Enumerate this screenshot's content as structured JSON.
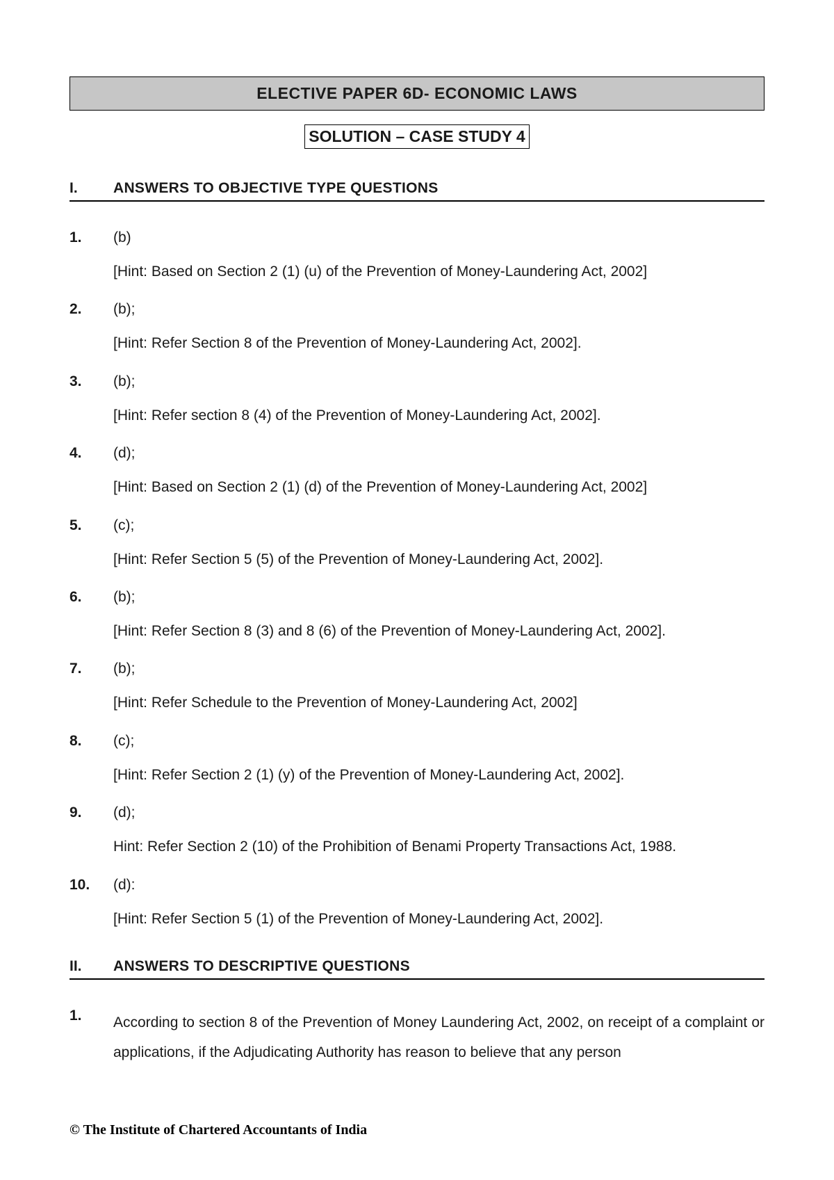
{
  "header": {
    "title": "ELECTIVE PAPER 6D- ECONOMIC LAWS",
    "subtitle": "SOLUTION – CASE STUDY 4"
  },
  "section1": {
    "num": "I.",
    "title": "ANSWERS TO OBJECTIVE TYPE QUESTIONS"
  },
  "questions": [
    {
      "num": "1.",
      "ans": "(b)",
      "hint": "[Hint: Based on Section 2 (1) (u) of the Prevention of Money-Laundering Act, 2002]"
    },
    {
      "num": "2.",
      "ans": "(b);",
      "hint": "[Hint: Refer Section 8 of the Prevention of Money-Laundering Act, 2002]."
    },
    {
      "num": "3.",
      "ans": "(b);",
      "hint": "[Hint: Refer section 8 (4) of the Prevention of Money-Laundering Act, 2002]."
    },
    {
      "num": "4.",
      "ans": "(d);",
      "hint": "[Hint: Based on Section 2 (1) (d) of the Prevention of Money-Laundering Act, 2002]"
    },
    {
      "num": "5.",
      "ans": "(c);",
      "hint": "[Hint: Refer Section 5 (5) of the Prevention of Money-Laundering Act, 2002]."
    },
    {
      "num": "6.",
      "ans": "(b);",
      "hint": "[Hint: Refer Section 8 (3) and 8 (6) of the Prevention of Money-Laundering Act, 2002]."
    },
    {
      "num": "7.",
      "ans": "(b);",
      "hint": "[Hint: Refer Schedule to the Prevention of Money-Laundering Act, 2002]"
    },
    {
      "num": "8.",
      "ans": "(c);",
      "hint": "[Hint: Refer Section 2 (1) (y) of the Prevention of Money-Laundering Act, 2002]."
    },
    {
      "num": "9.",
      "ans": "(d);",
      "hint": "Hint: Refer Section 2 (10) of the Prohibition of Benami Property Transactions Act, 1988."
    },
    {
      "num": "10.",
      "ans": "(d):",
      "hint": "[Hint: Refer Section 5 (1) of the Prevention of Money-Laundering Act, 2002]."
    }
  ],
  "section2": {
    "num": "II.",
    "title": "ANSWERS TO DESCRIPTIVE QUESTIONS"
  },
  "descriptive": {
    "num": "1.",
    "text": "According to section 8 of the Prevention of Money Laundering Act, 2002, on receipt of a complaint or applications, if the Adjudicating Authority has reason to believe that any person"
  },
  "footer": "© The Institute of Chartered Accountants of India"
}
